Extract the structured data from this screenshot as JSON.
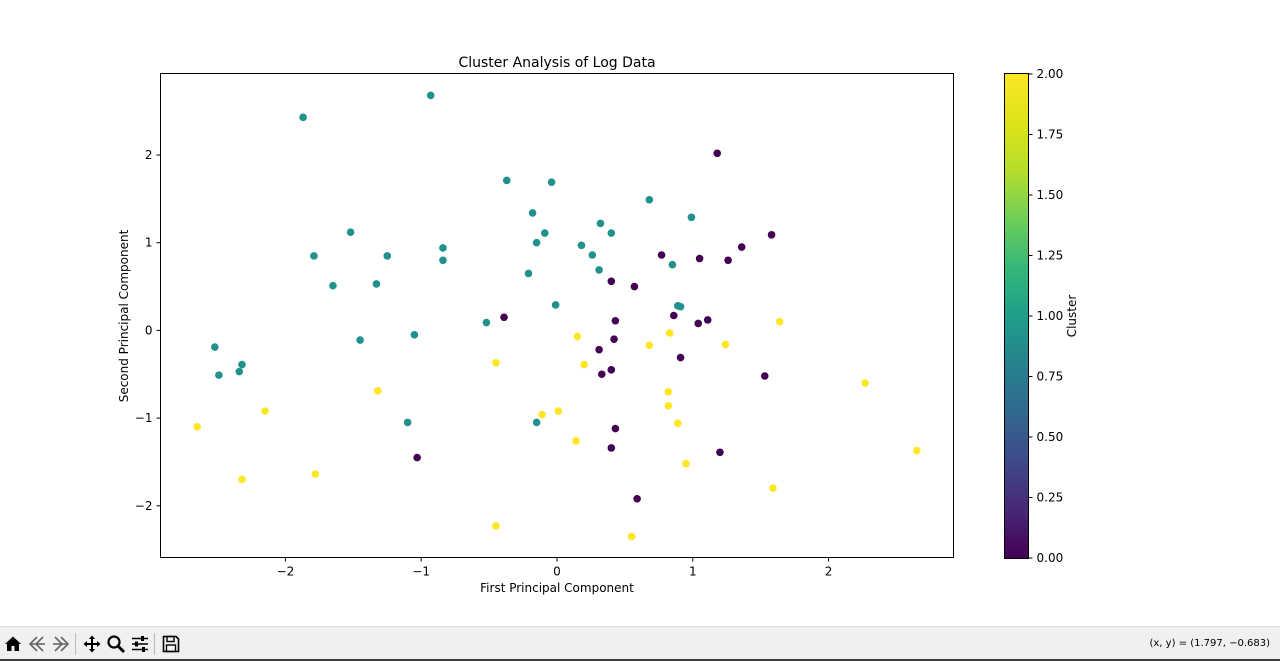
{
  "chart_data": {
    "type": "scatter",
    "title": "Cluster Analysis of Log Data",
    "xlabel": "First Principal Component",
    "ylabel": "Second Principal Component",
    "xlim": [
      -2.92,
      2.92
    ],
    "ylim": [
      -2.59,
      2.93
    ],
    "xticks": [
      -2,
      -1,
      0,
      1,
      2
    ],
    "xtick_labels": [
      "−2",
      "−1",
      "0",
      "1",
      "2"
    ],
    "yticks": [
      -2,
      -1,
      0,
      1,
      2
    ],
    "ytick_labels": [
      "−2",
      "−1",
      "0",
      "1",
      "2"
    ],
    "grid": false,
    "colormap": "viridis",
    "colorbar": {
      "label": "Cluster",
      "range": [
        0,
        2
      ],
      "ticks": [
        0,
        0.25,
        0.5,
        0.75,
        1.0,
        1.25,
        1.5,
        1.75,
        2.0
      ],
      "tick_labels": [
        "0.00",
        "0.25",
        "0.50",
        "0.75",
        "1.00",
        "1.25",
        "1.50",
        "1.75",
        "2.00"
      ]
    },
    "cluster_colors": {
      "0": "#440154",
      "1": "#21918c",
      "2": "#fde725"
    },
    "points": [
      {
        "x": -0.93,
        "y": 2.68,
        "cluster": 1
      },
      {
        "x": -1.87,
        "y": 2.43,
        "cluster": 1
      },
      {
        "x": -0.37,
        "y": 1.71,
        "cluster": 1
      },
      {
        "x": -0.04,
        "y": 1.69,
        "cluster": 1
      },
      {
        "x": 0.68,
        "y": 1.49,
        "cluster": 1
      },
      {
        "x": -0.18,
        "y": 1.34,
        "cluster": 1
      },
      {
        "x": 0.99,
        "y": 1.29,
        "cluster": 1
      },
      {
        "x": 0.32,
        "y": 1.22,
        "cluster": 1
      },
      {
        "x": -1.52,
        "y": 1.12,
        "cluster": 1
      },
      {
        "x": -0.09,
        "y": 1.11,
        "cluster": 1
      },
      {
        "x": 0.4,
        "y": 1.11,
        "cluster": 1
      },
      {
        "x": -0.15,
        "y": 1.0,
        "cluster": 1
      },
      {
        "x": 0.18,
        "y": 0.97,
        "cluster": 1
      },
      {
        "x": -0.84,
        "y": 0.94,
        "cluster": 1
      },
      {
        "x": 0.26,
        "y": 0.86,
        "cluster": 1
      },
      {
        "x": -1.79,
        "y": 0.85,
        "cluster": 1
      },
      {
        "x": -1.25,
        "y": 0.85,
        "cluster": 1
      },
      {
        "x": -0.84,
        "y": 0.8,
        "cluster": 1
      },
      {
        "x": 0.85,
        "y": 0.75,
        "cluster": 1
      },
      {
        "x": 0.31,
        "y": 0.69,
        "cluster": 1
      },
      {
        "x": -0.21,
        "y": 0.65,
        "cluster": 1
      },
      {
        "x": -1.65,
        "y": 0.51,
        "cluster": 1
      },
      {
        "x": -1.33,
        "y": 0.53,
        "cluster": 1
      },
      {
        "x": -0.01,
        "y": 0.29,
        "cluster": 1
      },
      {
        "x": 0.89,
        "y": 0.28,
        "cluster": 1
      },
      {
        "x": 0.91,
        "y": 0.27,
        "cluster": 1
      },
      {
        "x": -0.52,
        "y": 0.09,
        "cluster": 1
      },
      {
        "x": -1.05,
        "y": -0.05,
        "cluster": 1
      },
      {
        "x": -1.45,
        "y": -0.11,
        "cluster": 1
      },
      {
        "x": -2.52,
        "y": -0.19,
        "cluster": 1
      },
      {
        "x": -2.32,
        "y": -0.39,
        "cluster": 1
      },
      {
        "x": -2.49,
        "y": -0.51,
        "cluster": 1
      },
      {
        "x": -2.34,
        "y": -0.47,
        "cluster": 1
      },
      {
        "x": -1.1,
        "y": -1.05,
        "cluster": 1
      },
      {
        "x": -0.15,
        "y": -1.05,
        "cluster": 1
      },
      {
        "x": 1.18,
        "y": 2.02,
        "cluster": 0
      },
      {
        "x": 1.58,
        "y": 1.09,
        "cluster": 0
      },
      {
        "x": 1.36,
        "y": 0.95,
        "cluster": 0
      },
      {
        "x": 0.77,
        "y": 0.86,
        "cluster": 0
      },
      {
        "x": 1.05,
        "y": 0.82,
        "cluster": 0
      },
      {
        "x": 1.26,
        "y": 0.8,
        "cluster": 0
      },
      {
        "x": 0.4,
        "y": 0.56,
        "cluster": 0
      },
      {
        "x": 0.57,
        "y": 0.5,
        "cluster": 0
      },
      {
        "x": 0.86,
        "y": 0.17,
        "cluster": 0
      },
      {
        "x": -0.39,
        "y": 0.15,
        "cluster": 0
      },
      {
        "x": 1.11,
        "y": 0.12,
        "cluster": 0
      },
      {
        "x": 0.43,
        "y": 0.11,
        "cluster": 0
      },
      {
        "x": 1.04,
        "y": 0.08,
        "cluster": 0
      },
      {
        "x": 0.42,
        "y": -0.1,
        "cluster": 0
      },
      {
        "x": 0.31,
        "y": -0.22,
        "cluster": 0
      },
      {
        "x": 0.91,
        "y": -0.31,
        "cluster": 0
      },
      {
        "x": 0.4,
        "y": -0.45,
        "cluster": 0
      },
      {
        "x": 0.33,
        "y": -0.5,
        "cluster": 0
      },
      {
        "x": 1.53,
        "y": -0.52,
        "cluster": 0
      },
      {
        "x": 0.43,
        "y": -1.12,
        "cluster": 0
      },
      {
        "x": 0.4,
        "y": -1.34,
        "cluster": 0
      },
      {
        "x": 1.2,
        "y": -1.39,
        "cluster": 0
      },
      {
        "x": -1.03,
        "y": -1.45,
        "cluster": 0
      },
      {
        "x": 0.59,
        "y": -1.92,
        "cluster": 0
      },
      {
        "x": 1.64,
        "y": 0.1,
        "cluster": 2
      },
      {
        "x": 0.15,
        "y": -0.07,
        "cluster": 2
      },
      {
        "x": 0.83,
        "y": -0.03,
        "cluster": 2
      },
      {
        "x": 0.68,
        "y": -0.17,
        "cluster": 2
      },
      {
        "x": 1.24,
        "y": -0.16,
        "cluster": 2
      },
      {
        "x": -0.45,
        "y": -0.37,
        "cluster": 2
      },
      {
        "x": 0.2,
        "y": -0.39,
        "cluster": 2
      },
      {
        "x": 2.27,
        "y": -0.6,
        "cluster": 2
      },
      {
        "x": -1.32,
        "y": -0.69,
        "cluster": 2
      },
      {
        "x": 0.82,
        "y": -0.7,
        "cluster": 2
      },
      {
        "x": 0.82,
        "y": -0.86,
        "cluster": 2
      },
      {
        "x": -2.15,
        "y": -0.92,
        "cluster": 2
      },
      {
        "x": 0.01,
        "y": -0.92,
        "cluster": 2
      },
      {
        "x": -0.11,
        "y": -0.96,
        "cluster": 2
      },
      {
        "x": 0.89,
        "y": -1.06,
        "cluster": 2
      },
      {
        "x": -2.65,
        "y": -1.1,
        "cluster": 2
      },
      {
        "x": 0.14,
        "y": -1.26,
        "cluster": 2
      },
      {
        "x": 2.65,
        "y": -1.37,
        "cluster": 2
      },
      {
        "x": 0.95,
        "y": -1.52,
        "cluster": 2
      },
      {
        "x": -1.78,
        "y": -1.64,
        "cluster": 2
      },
      {
        "x": -2.32,
        "y": -1.7,
        "cluster": 2
      },
      {
        "x": 1.59,
        "y": -1.8,
        "cluster": 2
      },
      {
        "x": -0.45,
        "y": -2.23,
        "cluster": 2
      },
      {
        "x": 0.55,
        "y": -2.35,
        "cluster": 2
      }
    ]
  },
  "toolbar": {
    "buttons": [
      {
        "name": "home-button",
        "icon": "home-icon"
      },
      {
        "name": "back-button",
        "icon": "back-arrow-icon"
      },
      {
        "name": "forward-button",
        "icon": "forward-arrow-icon"
      },
      {
        "name": "pan-button",
        "icon": "move-icon"
      },
      {
        "name": "zoom-button",
        "icon": "magnifier-icon"
      },
      {
        "name": "configure-subplots-button",
        "icon": "sliders-icon"
      },
      {
        "name": "save-button",
        "icon": "floppy-disk-icon"
      }
    ],
    "coords_text": "(x, y) = (1.797, −0.683)"
  }
}
